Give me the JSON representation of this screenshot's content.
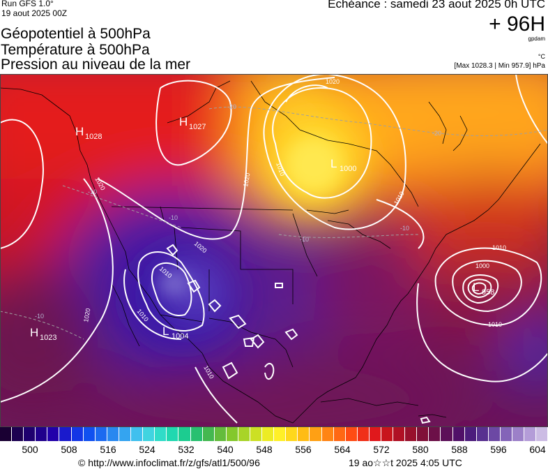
{
  "header": {
    "run": "Run GFS 1.0°",
    "run_date": "19 aout 2025 00Z",
    "title_lines": [
      "Géopotentiel à 500hPa",
      "Température à 500hPa",
      "Pression au niveau de la mer"
    ],
    "echeance": "Echéance : samedi 23 aout 2025 0h UTC",
    "lead": "+ 96H",
    "unit_gpdam": "gpdam",
    "unit_celsius": "°C",
    "maxmin": "[Max 1028.3 | Min 957.9] hPa"
  },
  "map": {
    "pressure_centers": [
      {
        "type": "H",
        "value": "1028"
      },
      {
        "type": "H",
        "value": "1027"
      },
      {
        "type": "L",
        "value": "1000"
      },
      {
        "type": "H",
        "value": "1023"
      },
      {
        "type": "L",
        "value": "1004"
      },
      {
        "type": "L",
        "value": "958"
      }
    ],
    "isobar_labels": [
      "1020",
      "1020",
      "1020",
      "1010",
      "1020",
      "1010",
      "1010",
      "1010",
      "1000",
      "1010",
      "1010",
      "1010",
      "1020"
    ],
    "temperature_labels": [
      "-20",
      "-20",
      "-10",
      "-10",
      "-10",
      "-10",
      "-10"
    ],
    "colors": {
      "red": "#e8141c",
      "orange": "#ff8c1a",
      "yellow": "#ffe44a",
      "purple": "#5a1fa0",
      "indigo": "#3c1aa0",
      "maroon": "#8a1040",
      "isobar": "#ffffff",
      "coast": "#000000"
    }
  },
  "colorbar": {
    "colors": [
      "#1a0033",
      "#1c0050",
      "#1e006e",
      "#20008c",
      "#2200aa",
      "#1a1acc",
      "#1436e6",
      "#1050f0",
      "#1c6af0",
      "#2888f0",
      "#34a4f0",
      "#40c0ee",
      "#40d4e0",
      "#30dcc8",
      "#20d8b0",
      "#1ccc90",
      "#28c070",
      "#44b850",
      "#64bc3c",
      "#84c82c",
      "#a8d428",
      "#cce024",
      "#ecec24",
      "#fff028",
      "#ffd81c",
      "#ffbc14",
      "#ffa014",
      "#ff8414",
      "#ff6814",
      "#ff4c14",
      "#f03018",
      "#e0181c",
      "#c8141c",
      "#b01024",
      "#98102c",
      "#801038",
      "#6c1048",
      "#5c1058",
      "#501068",
      "#4c1c7c",
      "#583090",
      "#6c48a4",
      "#8464b8",
      "#9c80c8",
      "#b49cd8",
      "#ccbce4"
    ],
    "ticks": [
      "500",
      "508",
      "516",
      "524",
      "532",
      "540",
      "548",
      "556",
      "564",
      "572",
      "580",
      "588",
      "596",
      "604"
    ]
  },
  "footer": {
    "url": "© http://www.infoclimat.fr/z/gfs/atl1/500/96",
    "date": "19 ao☆☆t 2025  4:05 UTC"
  }
}
